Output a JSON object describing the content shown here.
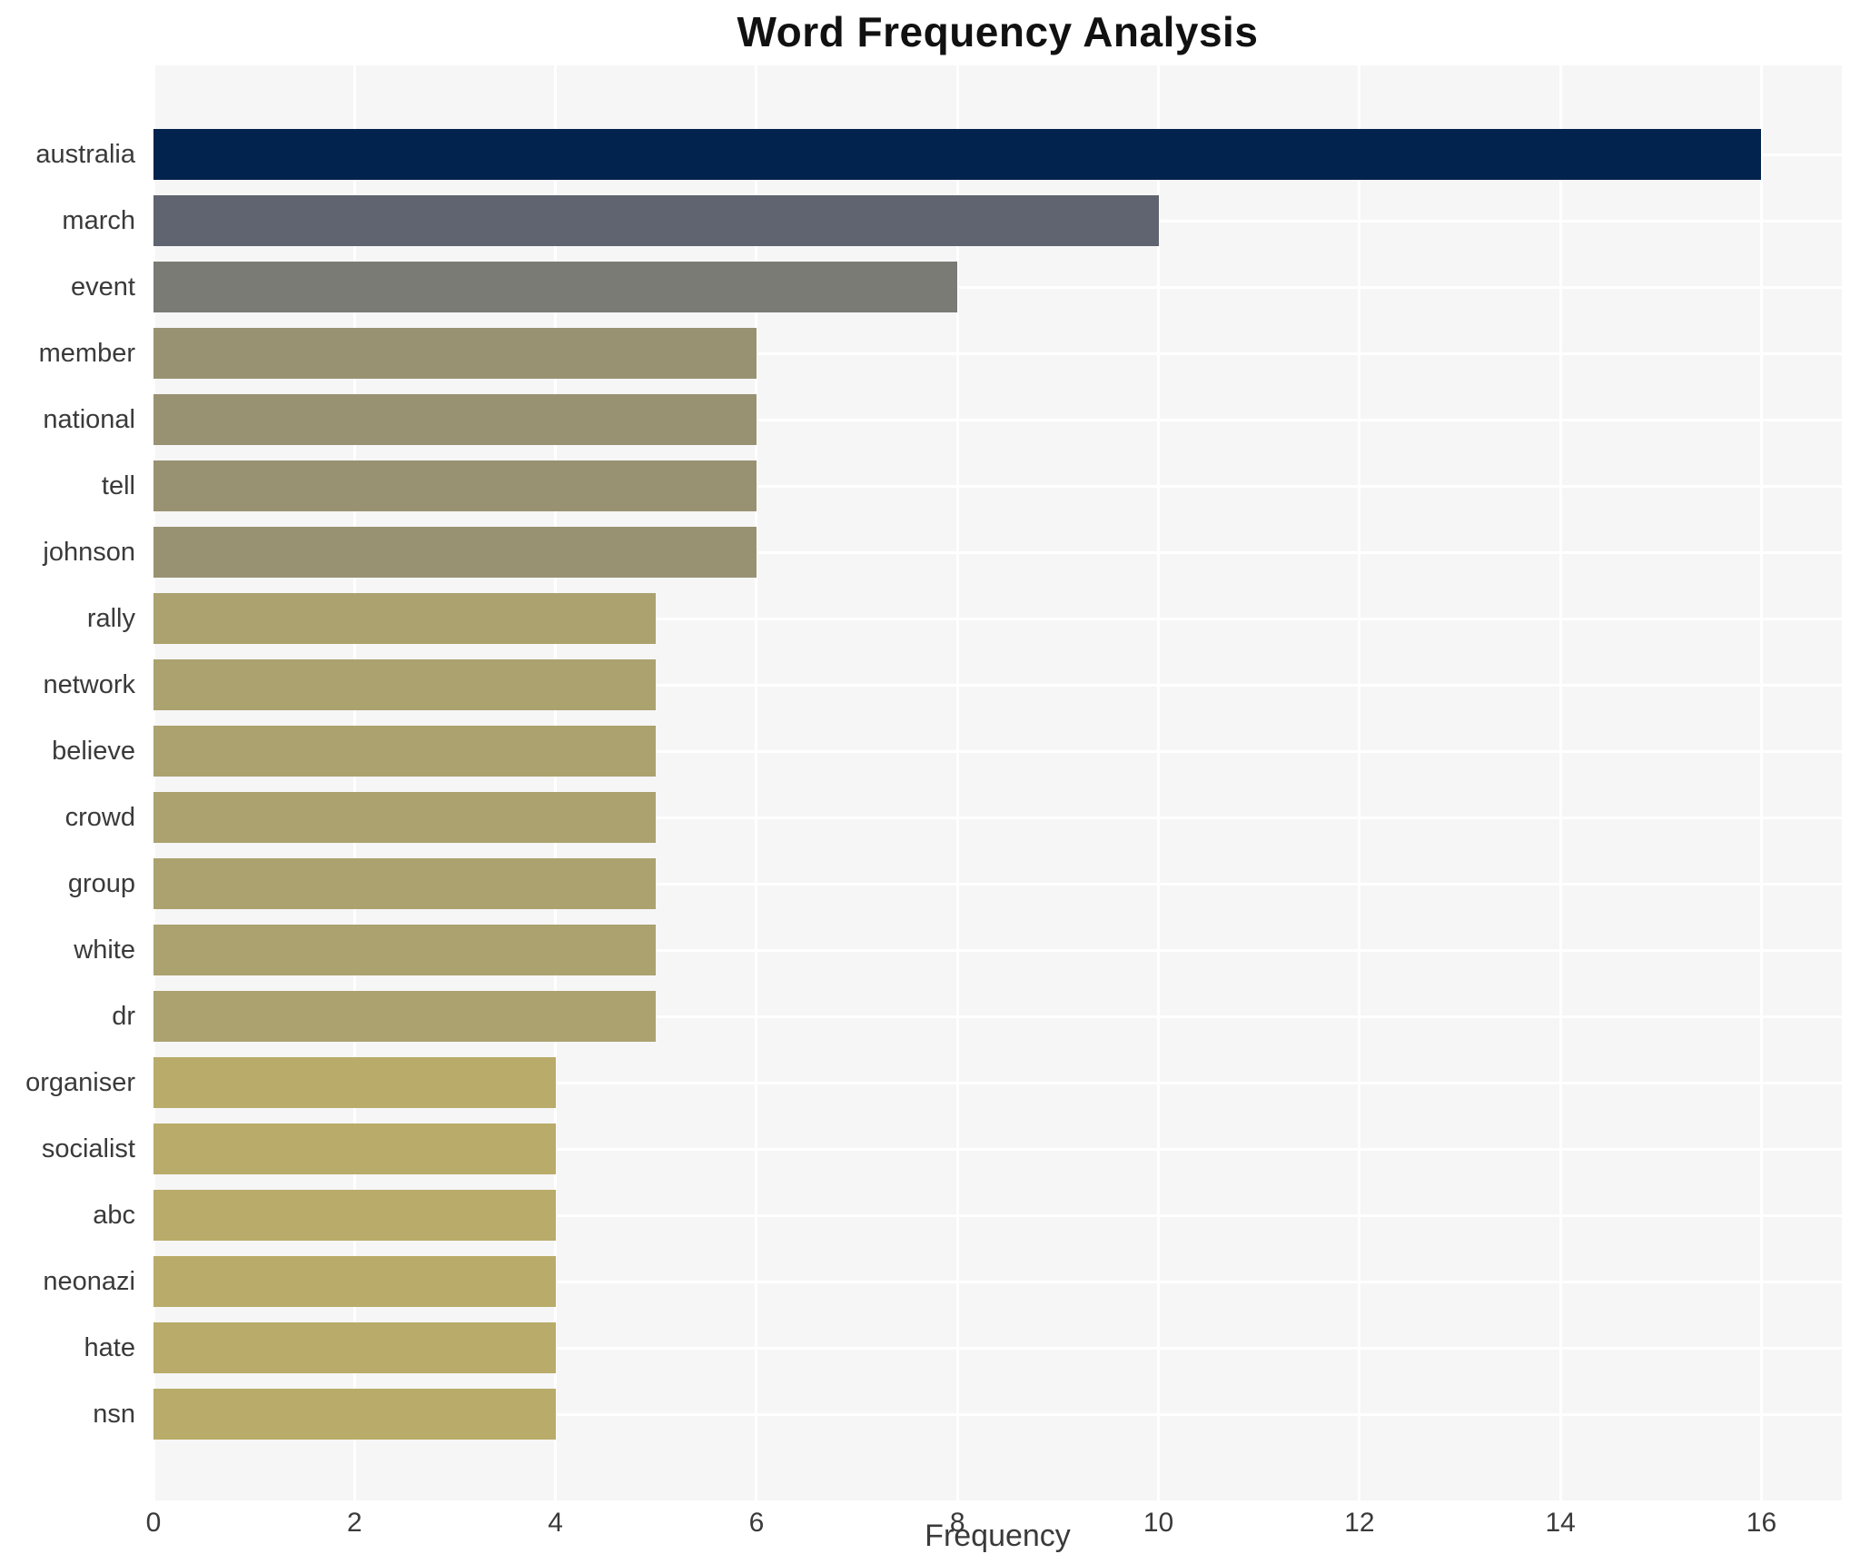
{
  "page": {
    "background": "#ffffff"
  },
  "chart_data": {
    "type": "bar",
    "orientation": "horizontal",
    "title": "Word Frequency Analysis",
    "xlabel": "Frequency",
    "ylabel": "",
    "xlim": [
      0,
      16.8
    ],
    "xticks": [
      0,
      2,
      4,
      6,
      8,
      10,
      12,
      14,
      16
    ],
    "grid": true,
    "legend": false,
    "categories": [
      "australia",
      "march",
      "event",
      "member",
      "national",
      "tell",
      "johnson",
      "rally",
      "network",
      "believe",
      "crowd",
      "group",
      "white",
      "dr",
      "organiser",
      "socialist",
      "abc",
      "neonazi",
      "hate",
      "nsn"
    ],
    "values": [
      16,
      10,
      8,
      6,
      6,
      6,
      6,
      5,
      5,
      5,
      5,
      5,
      5,
      5,
      4,
      4,
      4,
      4,
      4,
      4
    ],
    "bar_colors": [
      "#02234d",
      "#5f6470",
      "#7b7b75",
      "#999272",
      "#999272",
      "#999272",
      "#999272",
      "#aba26f",
      "#aba26f",
      "#aba26f",
      "#aba26f",
      "#aba26f",
      "#aba26f",
      "#aba26f",
      "#b9ab69",
      "#b9ab69",
      "#b9ab69",
      "#b9ab69",
      "#b9ab69",
      "#b9ab69"
    ],
    "colors": {
      "plot_background": "#f6f6f7",
      "grid": "#ffffff",
      "tick_text": "#3a3a3a",
      "title_text": "#111111"
    }
  }
}
